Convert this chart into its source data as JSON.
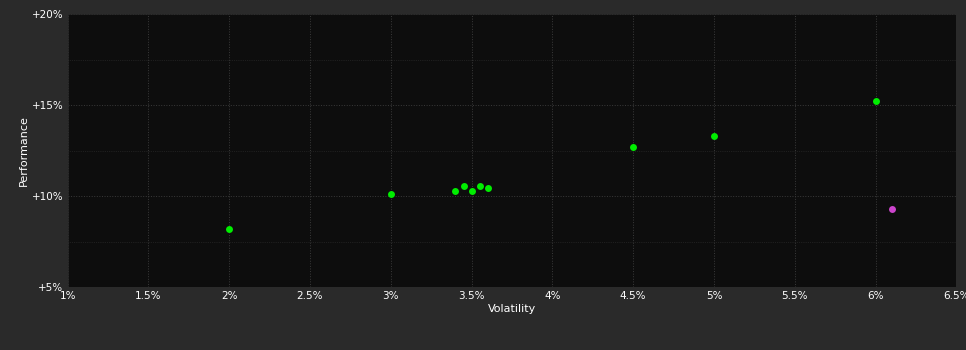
{
  "background_color": "#2a2a2a",
  "plot_bg_color": "#0d0d0d",
  "grid_color": "#3a3a3a",
  "text_color": "#ffffff",
  "xlabel": "Volatility",
  "ylabel": "Performance",
  "xlim": [
    0.01,
    0.065
  ],
  "ylim": [
    0.05,
    0.2
  ],
  "xticks": [
    0.01,
    0.015,
    0.02,
    0.025,
    0.03,
    0.035,
    0.04,
    0.045,
    0.05,
    0.055,
    0.06,
    0.065
  ],
  "xtick_labels": [
    "1%",
    "1.5%",
    "2%",
    "2.5%",
    "3%",
    "3.5%",
    "4%",
    "4.5%",
    "5%",
    "5.5%",
    "6%",
    "6.5%"
  ],
  "yticks": [
    0.05,
    0.1,
    0.15,
    0.2
  ],
  "ytick_labels": [
    "+5%",
    "+10%",
    "+15%",
    "+20%"
  ],
  "yticks_minor": [
    0.05,
    0.075,
    0.1,
    0.125,
    0.15,
    0.175,
    0.2
  ],
  "green_points": [
    [
      0.02,
      0.082
    ],
    [
      0.03,
      0.101
    ],
    [
      0.034,
      0.103
    ],
    [
      0.0345,
      0.1055
    ],
    [
      0.035,
      0.103
    ],
    [
      0.0355,
      0.1055
    ],
    [
      0.036,
      0.1045
    ],
    [
      0.045,
      0.127
    ],
    [
      0.05,
      0.133
    ],
    [
      0.06,
      0.152
    ]
  ],
  "magenta_points": [
    [
      0.061,
      0.093
    ]
  ],
  "point_size": 25,
  "green_color": "#00ee00",
  "magenta_color": "#cc44cc",
  "xlabel_fontsize": 8,
  "ylabel_fontsize": 8,
  "tick_fontsize": 7.5
}
